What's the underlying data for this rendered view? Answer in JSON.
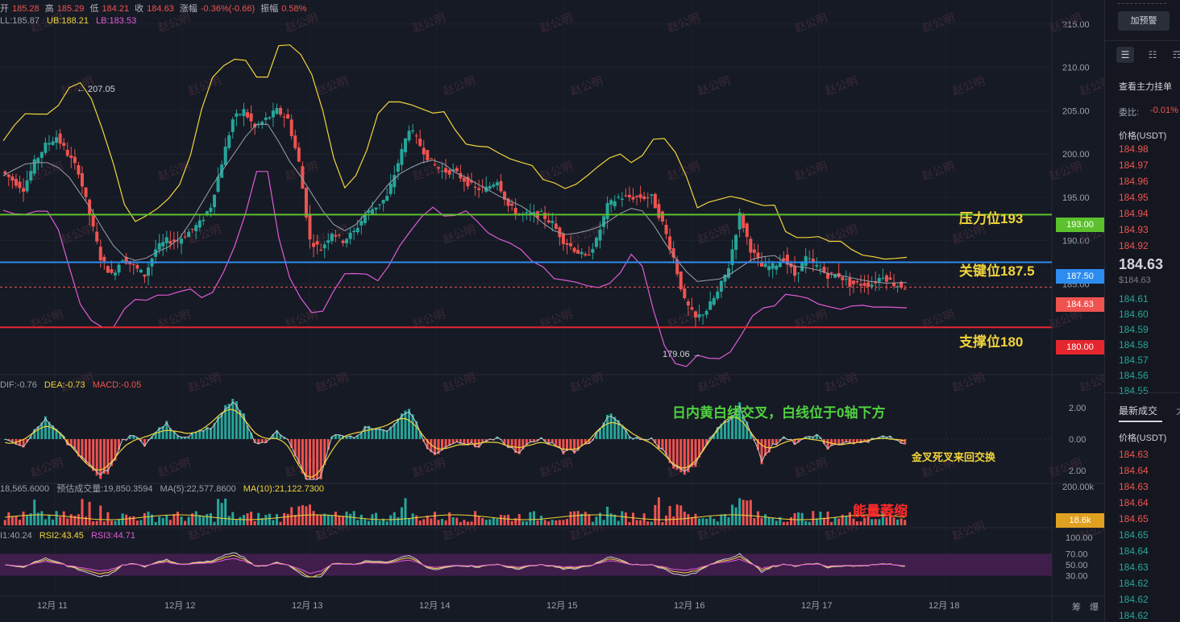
{
  "header": {
    "open_label": "开",
    "open": "185.28",
    "high_label": "高",
    "high": "185.29",
    "low_label": "低",
    "low": "184.21",
    "close_label": "收",
    "close": "184.63",
    "change_label": "涨幅",
    "change": "-0.36%(-0.66)",
    "amp_label": "振幅",
    "amp": "0.58%"
  },
  "bollinger": {
    "mid": "LL:185.87",
    "ub": "UB:188.21",
    "lb": "LB:183.53"
  },
  "macd_legend": {
    "dif": "DIF:-0.76",
    "dea": "DEA:-0.73",
    "macd": "MACD:-0.05"
  },
  "volume_legend": {
    "vol": "18,565.6000",
    "est": "预估成交量:19,850.3594",
    "ma5": "MA(5):22,577.8600",
    "ma10": "MA(10):21,122.7300"
  },
  "rsi_legend": {
    "rsi1": "I1:40.24",
    "rsi2": "RSI2:43.45",
    "rsi3": "RSI3:44.71"
  },
  "annotations": {
    "resistance": "压力位193",
    "key": "关键位187.5",
    "support": "支撑位180",
    "macd_note": "日内黄白线交叉，白线位于0轴下方",
    "cross_note": "金叉死叉来回交换",
    "volume_note": "能量萎缩",
    "high_marker": "← 207.05",
    "low_marker": "179.06 →",
    "watermark": "赵公明"
  },
  "price_tags": {
    "resistance": "193.00",
    "key": "187.50",
    "last": "184.63",
    "support": "180.00",
    "volume": "18.6k"
  },
  "price_axis": [
    "215.00",
    "210.00",
    "205.00",
    "200.00",
    "195.00",
    "190.00",
    "185.00"
  ],
  "macd_axis": [
    "2.00",
    "0.00",
    "2.00"
  ],
  "volume_axis": [
    "200.00k"
  ],
  "rsi_axis": [
    "100.00",
    "70.00",
    "50.00",
    "30.00"
  ],
  "x_axis": [
    "12月 11",
    "12月 12",
    "12月 13",
    "12月 14",
    "12月 15",
    "12月 16",
    "12月 17",
    "12月 18"
  ],
  "footer_icons": [
    "筹",
    "爆"
  ],
  "right_panel": {
    "alert_button": "加预警",
    "view_orders": "查看主力挂单",
    "ratio_label": "委比:",
    "ratio": "-0.01%",
    "price_header": "价格(USDT)",
    "asks": [
      "184.98",
      "184.97",
      "184.96",
      "184.95",
      "184.94",
      "184.93",
      "184.92"
    ],
    "last_price": "184.63",
    "last_usd": "$184.63",
    "bids": [
      "184.61",
      "184.60",
      "184.59",
      "184.58",
      "184.57",
      "184.56",
      "184.55"
    ],
    "trades_tab": "最新成交",
    "trades_tab2": "大",
    "trades_header": "价格(USDT)",
    "trades": [
      {
        "p": "184.63",
        "c": "red"
      },
      {
        "p": "184.64",
        "c": "red"
      },
      {
        "p": "184.63",
        "c": "red"
      },
      {
        "p": "184.64",
        "c": "red"
      },
      {
        "p": "184.65",
        "c": "red"
      },
      {
        "p": "184.65",
        "c": "green"
      },
      {
        "p": "184.64",
        "c": "green"
      },
      {
        "p": "184.63",
        "c": "green"
      },
      {
        "p": "184.62",
        "c": "green"
      },
      {
        "p": "184.62",
        "c": "green"
      },
      {
        "p": "184.62",
        "c": "green"
      }
    ]
  },
  "colors": {
    "up": "#26a69a",
    "down": "#ef5350",
    "resistance": "#5cc12c",
    "key": "#2d8cf0",
    "support": "#e5262f",
    "boll_band": "#f0d43a",
    "boll_lower": "#e05bd6",
    "boll_mid": "#9aa0ad"
  },
  "chart_data": {
    "type": "candlestick",
    "x": [
      "12月 11",
      "12月 12",
      "12月 13",
      "12月 14",
      "12月 15",
      "12月 16",
      "12月 17",
      "12月 18"
    ],
    "ylim": [
      175,
      216
    ],
    "levels": {
      "resistance": 193.0,
      "key": 187.5,
      "support": 180.0,
      "last": 184.63
    },
    "extremes": {
      "high": 207.05,
      "low": 179.06
    },
    "close_path": [
      198,
      197,
      196,
      199,
      201,
      202,
      200,
      198,
      193,
      188,
      186,
      188,
      187,
      186,
      189,
      190,
      190,
      191,
      192,
      194,
      199,
      204,
      205,
      203,
      204,
      205,
      204,
      199,
      190,
      189,
      191,
      190,
      191,
      193,
      194,
      195,
      199,
      203,
      201,
      199,
      198,
      198,
      197,
      196,
      196,
      197,
      194,
      193,
      193,
      193,
      192,
      190,
      189,
      188,
      190,
      194,
      195,
      195,
      195,
      195,
      192,
      188,
      183,
      181,
      182,
      184,
      187,
      193,
      189,
      187,
      187,
      188,
      186,
      188,
      187,
      186,
      186,
      185,
      185,
      185,
      186,
      185,
      184.63
    ]
  }
}
